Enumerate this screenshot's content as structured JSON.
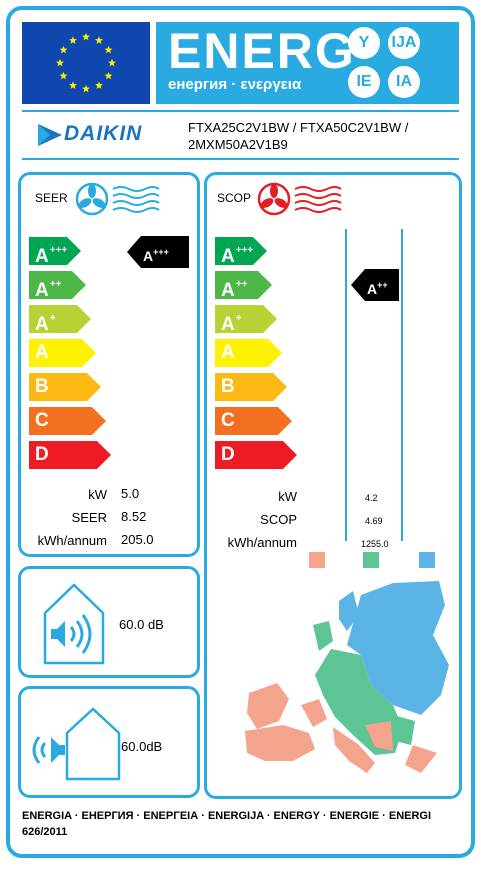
{
  "header": {
    "energ_word": "ENERG",
    "energ_sub": "енергия · ενεργεια",
    "language_badges": [
      "Y",
      "IJA",
      "IE",
      "IA"
    ]
  },
  "supplier": {
    "brand": "DAIKIN",
    "model_line1": "FTXA25C2V1BW / FTXA50C2V1BW /",
    "model_line2": "2MXM50A2V1B9"
  },
  "classes": [
    {
      "label": "A",
      "sup": "+++",
      "color": "#00a651"
    },
    {
      "label": "A",
      "sup": "++",
      "color": "#4db848"
    },
    {
      "label": "A",
      "sup": "+",
      "color": "#b5d334"
    },
    {
      "label": "A",
      "sup": "",
      "color": "#fff200"
    },
    {
      "label": "B",
      "sup": "",
      "color": "#fdb913"
    },
    {
      "label": "C",
      "sup": "",
      "color": "#f37021"
    },
    {
      "label": "D",
      "sup": "",
      "color": "#ed1c24"
    }
  ],
  "cooling": {
    "title": "SEER",
    "indicator": {
      "label": "A",
      "sup": "+++"
    },
    "rows": [
      {
        "label": "kW",
        "value": "5.0"
      },
      {
        "label": "SEER",
        "value": "8.52"
      },
      {
        "label": "kWh/annum",
        "value": "205.0"
      }
    ]
  },
  "heating": {
    "title": "SCOP",
    "indicator": {
      "label": "A",
      "sup": "++"
    },
    "rows": [
      {
        "label": "kW",
        "value": "4.2"
      },
      {
        "label": "SCOP",
        "value": "4.69"
      },
      {
        "label": "kWh/annum",
        "value": "1255.0"
      }
    ],
    "zone_colors": [
      "#f4a38c",
      "#5cc495",
      "#5ab4e5"
    ]
  },
  "noise": {
    "indoor": {
      "value": "60.0",
      "unit": "dB"
    },
    "outdoor": {
      "value": "60.0",
      "unit": "dB"
    }
  },
  "footer": {
    "line1": "ENERGIA · ЕНЕРГИЯ · ΕΝΕΡΓΕΙΑ · ENERGIJA · ENERGY · ENERGIE · ENERGI",
    "line2": "626/2011"
  },
  "colors": {
    "frame": "#29abe2",
    "flag_blue": "#0f47af",
    "star": "#ffed00",
    "indicator": "#000000"
  }
}
